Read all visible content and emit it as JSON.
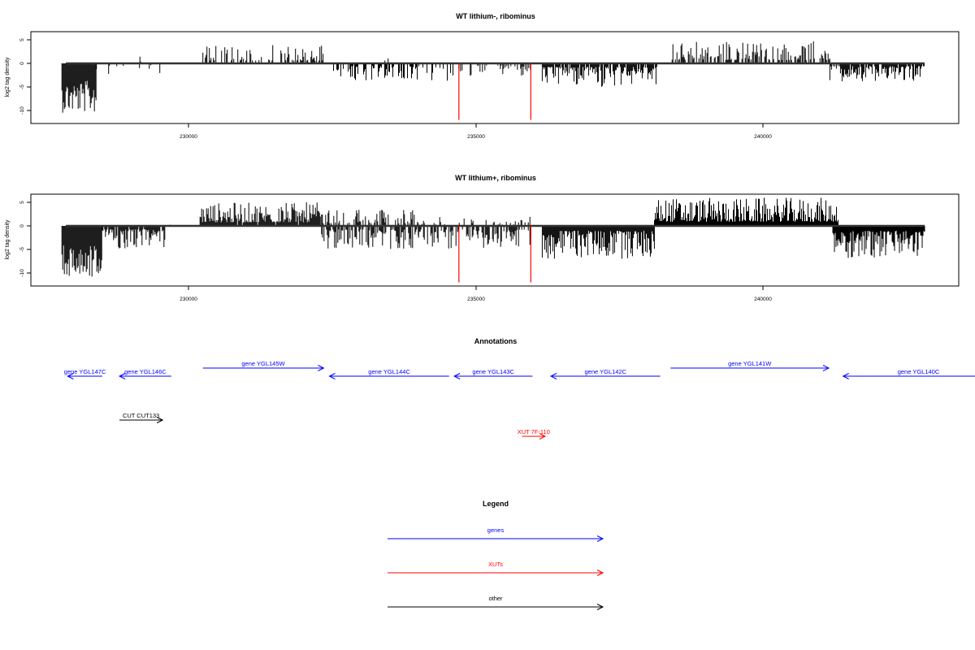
{
  "panels": [
    {
      "title": "WT lithium-, ribominus",
      "ylabel": "log2 tag density",
      "yticks": [
        "5",
        "0",
        "-5",
        "-10"
      ],
      "xticks": [
        "230000",
        "235000",
        "240000"
      ]
    },
    {
      "title": "WT lithium+, ribominus",
      "ylabel": "log2 tag density",
      "yticks": [
        "5",
        "0",
        "-5",
        "-10"
      ],
      "xticks": [
        "230000",
        "235000",
        "240000"
      ]
    }
  ],
  "annotations_title": "Annotations",
  "annotations": [
    {
      "label": "gene YGL147C",
      "color": "#0000ff",
      "strand": "-",
      "start": 227900,
      "end": 228500
    },
    {
      "label": "gene YGL146C",
      "color": "#0000ff",
      "strand": "-",
      "start": 228800,
      "end": 229700
    },
    {
      "label": "gene YGL145W",
      "color": "#0000ff",
      "strand": "+",
      "start": 230250,
      "end": 232350
    },
    {
      "label": "gene YGL144C",
      "color": "#0000ff",
      "strand": "-",
      "start": 232450,
      "end": 234530
    },
    {
      "label": "gene YGL143C",
      "color": "#0000ff",
      "strand": "-",
      "start": 234620,
      "end": 235980
    },
    {
      "label": "gene YGL142C",
      "color": "#0000ff",
      "strand": "-",
      "start": 236300,
      "end": 238200
    },
    {
      "label": "gene YGL141W",
      "color": "#0000ff",
      "strand": "+",
      "start": 238380,
      "end": 241130
    },
    {
      "label": "gene YGL140C",
      "color": "#0000ff",
      "strand": "-",
      "start": 241380,
      "end": 244000
    },
    {
      "label": "CUT CUT133",
      "color": "#000000",
      "strand": "+",
      "start": 228800,
      "end": 229550
    },
    {
      "label": "XUT 7F-110",
      "color": "#ff0000",
      "strand": "+",
      "start": 235800,
      "end": 236200
    }
  ],
  "legend_title": "Legend",
  "legend": [
    {
      "label": "genes",
      "color": "#0000ff"
    },
    {
      "label": "XUTs",
      "color": "#ff0000"
    },
    {
      "label": "other",
      "color": "#000000"
    }
  ],
  "chart_data": [
    {
      "type": "bar",
      "title": "WT lithium-, ribominus",
      "xlabel": "",
      "ylabel": "log2 tag density",
      "xlim": [
        227200,
        243500
      ],
      "ylim": [
        -12.5,
        7
      ],
      "plot_range": [
        227800,
        242800
      ],
      "red_markers": [
        {
          "x": 234700,
          "y": -12
        },
        {
          "x": 235950,
          "y": -12
        }
      ],
      "segments": [
        {
          "start": 227800,
          "end": 228400,
          "sign": -1,
          "max": 10.5,
          "density": 1.0
        },
        {
          "start": 228400,
          "end": 229600,
          "sign": -1,
          "max": 2.5,
          "density": 0.12
        },
        {
          "start": 229000,
          "end": 229200,
          "sign": 1,
          "max": 2.2,
          "density": 0.2
        },
        {
          "start": 230250,
          "end": 232350,
          "sign": 1,
          "max": 4.0,
          "density": 0.45
        },
        {
          "start": 232450,
          "end": 234600,
          "sign": -1,
          "max": 3.8,
          "density": 0.45
        },
        {
          "start": 233400,
          "end": 233500,
          "sign": 1,
          "max": 2.8,
          "density": 0.1
        },
        {
          "start": 234700,
          "end": 235950,
          "sign": -1,
          "max": 3.0,
          "density": 0.3
        },
        {
          "start": 236150,
          "end": 238150,
          "sign": -1,
          "max": 5.0,
          "density": 0.85
        },
        {
          "start": 238350,
          "end": 241150,
          "sign": 1,
          "max": 4.8,
          "density": 0.55
        },
        {
          "start": 241150,
          "end": 242800,
          "sign": -1,
          "max": 3.8,
          "density": 0.8
        }
      ]
    },
    {
      "type": "bar",
      "title": "WT lithium+, ribominus",
      "xlabel": "",
      "ylabel": "log2 tag density",
      "xlim": [
        227200,
        243500
      ],
      "ylim": [
        -12.5,
        7
      ],
      "plot_range": [
        227800,
        242800
      ],
      "red_markers": [
        {
          "x": 234700,
          "y": -12
        },
        {
          "x": 235950,
          "y": -12
        }
      ],
      "segments": [
        {
          "start": 227800,
          "end": 228500,
          "sign": -1,
          "max": 11.0,
          "density": 1.0
        },
        {
          "start": 228500,
          "end": 229600,
          "sign": -1,
          "max": 5.0,
          "density": 0.9
        },
        {
          "start": 229600,
          "end": 229900,
          "sign": 1,
          "max": 1.5,
          "density": 0.2
        },
        {
          "start": 230200,
          "end": 232300,
          "sign": 1,
          "max": 5.0,
          "density": 0.9
        },
        {
          "start": 232300,
          "end": 234000,
          "sign": -1,
          "max": 5.0,
          "density": 0.7
        },
        {
          "start": 232300,
          "end": 234000,
          "sign": 1,
          "max": 3.5,
          "density": 0.5
        },
        {
          "start": 234000,
          "end": 235950,
          "sign": -1,
          "max": 5.0,
          "density": 0.6
        },
        {
          "start": 234000,
          "end": 235950,
          "sign": 1,
          "max": 2.0,
          "density": 0.2
        },
        {
          "start": 236150,
          "end": 238100,
          "sign": -1,
          "max": 7.0,
          "density": 1.0
        },
        {
          "start": 238100,
          "end": 241300,
          "sign": 1,
          "max": 6.0,
          "density": 1.0
        },
        {
          "start": 241200,
          "end": 242800,
          "sign": -1,
          "max": 7.0,
          "density": 1.0
        }
      ]
    }
  ]
}
